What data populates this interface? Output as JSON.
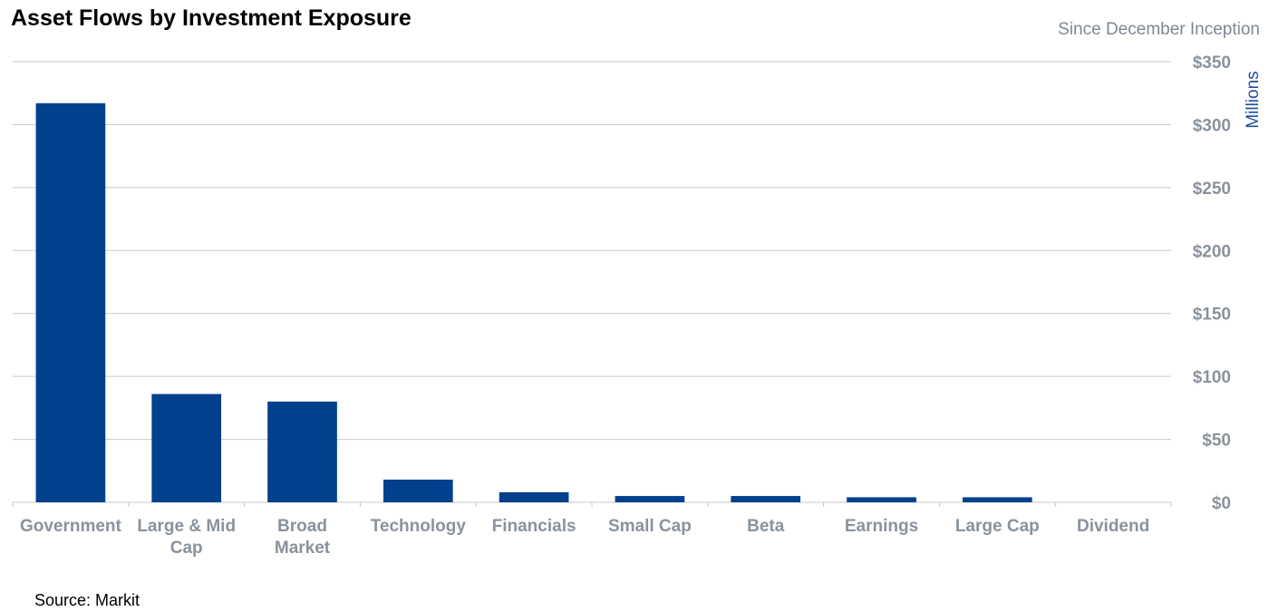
{
  "chart_data": {
    "type": "bar",
    "title": "Asset Flows by Investment Exposure",
    "subtitle": "Since December Inception",
    "ylabel": "Millions",
    "source": "Source: Markit",
    "categories": [
      [
        "Government"
      ],
      [
        "Large & Mid",
        "Cap"
      ],
      [
        "Broad",
        "Market"
      ],
      [
        "Technology"
      ],
      [
        "Financials"
      ],
      [
        "Small Cap"
      ],
      [
        "Beta"
      ],
      [
        "Earnings"
      ],
      [
        "Large Cap"
      ],
      [
        "Dividend"
      ]
    ],
    "values": [
      317,
      86,
      80,
      18,
      8,
      5,
      5,
      4,
      4,
      0
    ],
    "ylim": [
      0,
      350
    ],
    "yticks": [
      0,
      50,
      100,
      150,
      200,
      250,
      300,
      350
    ],
    "ytick_labels": [
      "$0",
      "$50",
      "$100",
      "$150",
      "$200",
      "$250",
      "$300",
      "$350"
    ],
    "y_axis_side": "right",
    "grid": true,
    "colors": {
      "bar": "#00408d",
      "tick_text": "#8a929b",
      "unit_text": "#1f4e99",
      "subtitle_text": "#7f8791"
    }
  }
}
